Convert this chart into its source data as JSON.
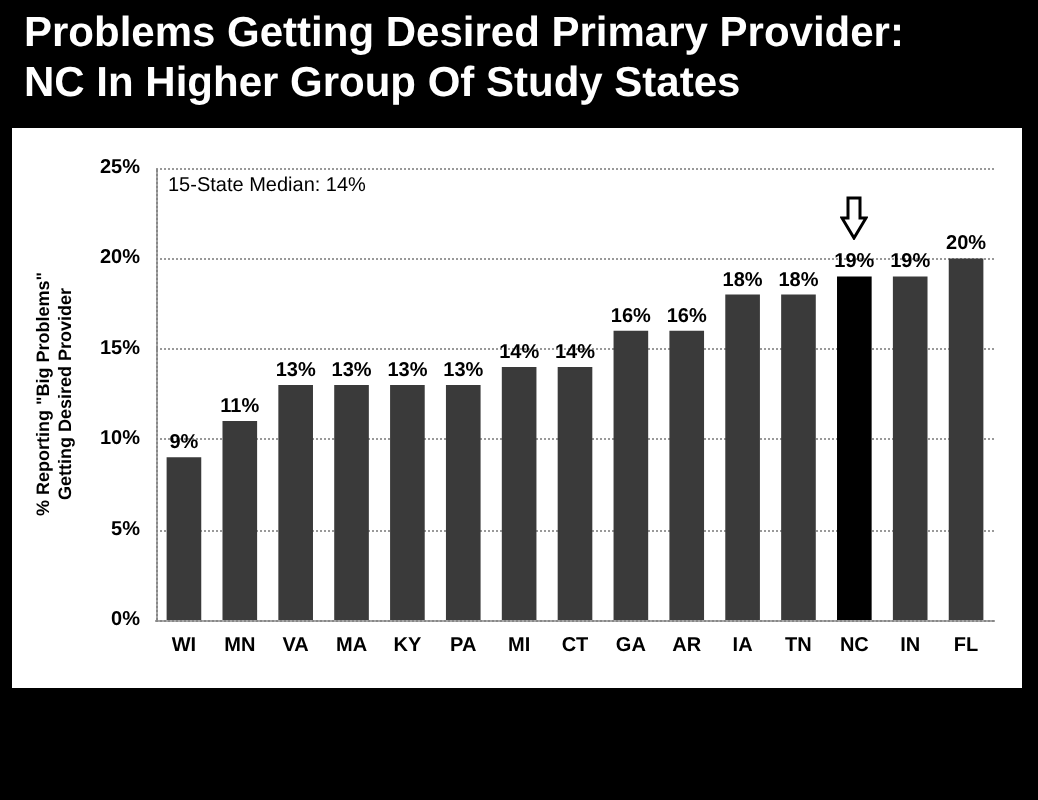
{
  "chart_data": {
    "type": "bar",
    "title": "Problems Getting Desired Primary Provider:\nNC In Higher Group Of Study States",
    "ylabel": "% Reporting \"Big Problems\"\nGetting Desired Provider",
    "categories": [
      "WI",
      "MN",
      "VA",
      "MA",
      "KY",
      "PA",
      "MI",
      "CT",
      "GA",
      "AR",
      "IA",
      "TN",
      "NC",
      "IN",
      "FL"
    ],
    "values": [
      9,
      11,
      13,
      13,
      13,
      13,
      14,
      14,
      16,
      16,
      18,
      18,
      19,
      19,
      20
    ],
    "colors": [
      "#3a3a3a",
      "#3a3a3a",
      "#3a3a3a",
      "#3a3a3a",
      "#3a3a3a",
      "#3a3a3a",
      "#3a3a3a",
      "#3a3a3a",
      "#3a3a3a",
      "#3a3a3a",
      "#3a3a3a",
      "#3a3a3a",
      "#000000",
      "#3a3a3a",
      "#3a3a3a"
    ],
    "ylim": [
      0,
      25
    ],
    "yticks": [
      {
        "value": 0,
        "label": "0%"
      },
      {
        "value": 5,
        "label": "5%"
      },
      {
        "value": 10,
        "label": "10%"
      },
      {
        "value": 15,
        "label": "15%"
      },
      {
        "value": 20,
        "label": "20%"
      },
      {
        "value": 25,
        "label": "25%"
      }
    ],
    "grid": "y",
    "value_labels": [
      "9%",
      "11%",
      "13%",
      "13%",
      "13%",
      "13%",
      "14%",
      "14%",
      "16%",
      "16%",
      "18%",
      "18%",
      "19%",
      "19%",
      "20%"
    ],
    "annotations": [
      "15-State Median: 14%"
    ]
  }
}
